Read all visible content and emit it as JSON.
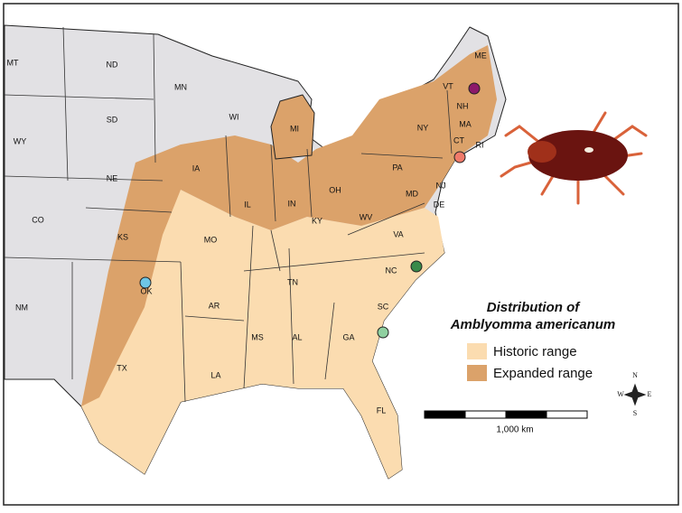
{
  "state_labels": [
    "MT",
    "ND",
    "MN",
    "WI",
    "MI",
    "ME",
    "VT",
    "NH",
    "MA",
    "NY",
    "CT",
    "RI",
    "SD",
    "WY",
    "IA",
    "NE",
    "IL",
    "IN",
    "OH",
    "PA",
    "NJ",
    "MD",
    "DE",
    "WV",
    "CO",
    "KS",
    "MO",
    "KY",
    "VA",
    "NC",
    "TN",
    "OK",
    "AR",
    "SC",
    "NM",
    "MS",
    "AL",
    "GA",
    "LA",
    "TX",
    "FL"
  ],
  "legend": {
    "title_line1": "Distribution of",
    "title_line2": "Amblyomma americanum",
    "items": [
      {
        "label": "Historic range",
        "color": "#fbdcb0"
      },
      {
        "label": "Expanded range",
        "color": "#dba26a"
      }
    ]
  },
  "scale_bar": {
    "label": "1,000 km"
  },
  "compass": {
    "n": "N",
    "s": "S",
    "e": "E",
    "w": "W"
  }
}
